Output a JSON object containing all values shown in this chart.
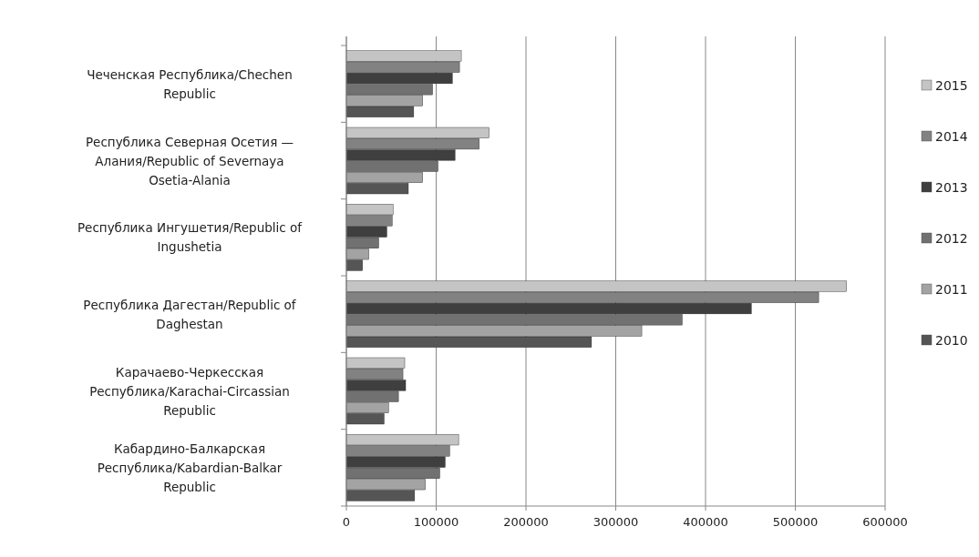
{
  "chart_data": {
    "type": "bar",
    "orientation": "horizontal",
    "categories": [
      "Чеченская  Республика/Chechen Republic",
      "Республика Северная Осетия — Алания/Republic of Severnaya Osetia-Alania",
      "Республика Ингушетия/Republic of Ingushetia",
      "Республика Дагестан/Republic of Daghestan",
      "Карачаево-Черкесская Республика/Karachai-Circassian Republic",
      "Кабардино-Балкарская Республика/Kabardian-Balkar Republic"
    ],
    "series": [
      {
        "name": "2015",
        "color": "#c4c4c4",
        "values": [
          128000,
          159000,
          52000,
          557000,
          65000,
          125000
        ]
      },
      {
        "name": "2014",
        "color": "#828282",
        "values": [
          126000,
          148000,
          51000,
          526000,
          63000,
          115000
        ]
      },
      {
        "name": "2013",
        "color": "#3f3f3f",
        "values": [
          118000,
          121000,
          45000,
          451000,
          66000,
          110000
        ]
      },
      {
        "name": "2012",
        "color": "#717171",
        "values": [
          96000,
          102000,
          36000,
          374000,
          58000,
          104000
        ]
      },
      {
        "name": "2011",
        "color": "#a3a3a3",
        "values": [
          85000,
          85000,
          25000,
          329000,
          47000,
          88000
        ]
      },
      {
        "name": "2010",
        "color": "#555555",
        "values": [
          75000,
          69000,
          18000,
          273000,
          42000,
          76000
        ]
      }
    ],
    "xlim": [
      0,
      600000
    ],
    "xticks": [
      0,
      100000,
      200000,
      300000,
      400000,
      500000,
      600000
    ],
    "grid": "x",
    "legend": "right"
  }
}
